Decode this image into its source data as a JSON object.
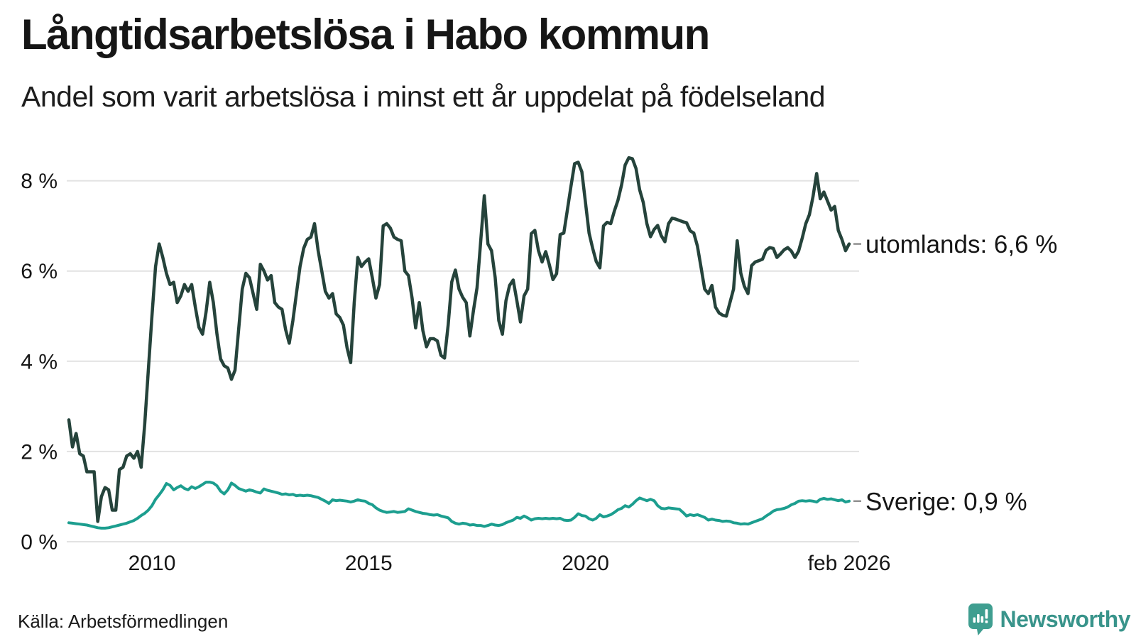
{
  "header": {
    "title": "Långtidsarbetslösa i Habo kommun",
    "subtitle": "Andel som varit arbetslösa i minst ett år uppdelat på födelseland"
  },
  "footer": {
    "source": "Källa: Arbetsförmedlingen",
    "brand": "Newsworthy",
    "brand_color": "#39948b",
    "icon": "speech-bubble-bar-chart"
  },
  "colors": {
    "background": "#ffffff",
    "grid": "#e2e2e2",
    "text": "#161616",
    "end_dash": "#8f8f8f",
    "brand_icon": "#3f9e90"
  },
  "chart_data": {
    "type": "line",
    "title": "Långtidsarbetslösa i Habo kommun",
    "subtitle": "Andel som varit arbetslösa i minst ett år uppdelat på födelseland",
    "x_unit": "month",
    "x_range": [
      "feb 2008",
      "feb 2026"
    ],
    "ylim": [
      0,
      8.6
    ],
    "grid": true,
    "legend_position": "right-end-labels",
    "x_ticks": [
      {
        "label": "2010",
        "index": 23
      },
      {
        "label": "2015",
        "index": 83
      },
      {
        "label": "2020",
        "index": 143
      },
      {
        "label": "feb 2026",
        "index": 216
      }
    ],
    "y_ticks": [
      {
        "label": "0 %",
        "value": 0
      },
      {
        "label": "2 %",
        "value": 2
      },
      {
        "label": "4 %",
        "value": 4
      },
      {
        "label": "6 %",
        "value": 6
      },
      {
        "label": "8 %",
        "value": 8
      }
    ],
    "series": [
      {
        "name": "utomlands",
        "label": "utomlands: 6,6 %",
        "end_value": "6,6 %",
        "color": "#25433b",
        "values": [
          2.7,
          2.1,
          2.4,
          1.95,
          1.9,
          1.55,
          1.55,
          1.55,
          0.45,
          1.0,
          1.2,
          1.15,
          0.7,
          0.7,
          1.6,
          1.65,
          1.9,
          1.95,
          1.85,
          2.0,
          1.65,
          2.6,
          3.8,
          5.0,
          6.1,
          6.6,
          6.3,
          5.95,
          5.7,
          5.75,
          5.3,
          5.45,
          5.7,
          5.55,
          5.7,
          5.2,
          4.75,
          4.6,
          5.1,
          5.75,
          5.3,
          4.6,
          4.05,
          3.9,
          3.85,
          3.6,
          3.8,
          4.7,
          5.6,
          5.95,
          5.85,
          5.5,
          5.15,
          6.15,
          6.0,
          5.8,
          5.9,
          5.3,
          5.2,
          5.15,
          4.7,
          4.4,
          4.9,
          5.5,
          6.1,
          6.5,
          6.7,
          6.75,
          7.05,
          6.45,
          6.0,
          5.55,
          5.4,
          5.5,
          5.05,
          4.97,
          4.8,
          4.3,
          3.97,
          5.3,
          6.3,
          6.1,
          6.2,
          6.27,
          5.85,
          5.4,
          5.7,
          7.0,
          7.05,
          6.95,
          6.75,
          6.7,
          6.67,
          6.0,
          5.9,
          5.4,
          4.74,
          5.3,
          4.68,
          4.32,
          4.5,
          4.5,
          4.45,
          4.13,
          4.07,
          4.8,
          5.76,
          6.02,
          5.6,
          5.42,
          5.3,
          4.56,
          5.13,
          5.63,
          6.65,
          7.67,
          6.6,
          6.45,
          5.86,
          4.9,
          4.6,
          5.34,
          5.68,
          5.8,
          5.35,
          4.87,
          5.45,
          5.6,
          6.83,
          6.9,
          6.45,
          6.2,
          6.43,
          6.14,
          5.81,
          5.94,
          6.81,
          6.84,
          7.35,
          7.88,
          8.38,
          8.41,
          8.2,
          7.52,
          6.84,
          6.5,
          6.21,
          6.07,
          7.0,
          7.08,
          7.05,
          7.33,
          7.57,
          7.91,
          8.35,
          8.51,
          8.49,
          8.27,
          7.8,
          7.52,
          7.05,
          6.76,
          6.92,
          7.01,
          6.78,
          6.65,
          7.05,
          7.17,
          7.15,
          7.12,
          7.09,
          7.07,
          6.89,
          6.84,
          6.55,
          6.08,
          5.6,
          5.5,
          5.68,
          5.2,
          5.07,
          5.02,
          5.0,
          5.3,
          5.6,
          6.67,
          5.95,
          5.66,
          5.5,
          6.12,
          6.2,
          6.23,
          6.26,
          6.46,
          6.52,
          6.5,
          6.3,
          6.38,
          6.47,
          6.52,
          6.44,
          6.3,
          6.44,
          6.73,
          7.05,
          7.25,
          7.65,
          8.16,
          7.6,
          7.75,
          7.55,
          7.35,
          7.43,
          6.9,
          6.7,
          6.45,
          6.6
        ]
      },
      {
        "name": "Sverige",
        "label": "Sverige: 0,9 %",
        "end_value": "0,9 %",
        "color": "#1c9e8f",
        "values": [
          0.42,
          0.41,
          0.4,
          0.39,
          0.38,
          0.37,
          0.35,
          0.33,
          0.31,
          0.3,
          0.3,
          0.31,
          0.33,
          0.35,
          0.37,
          0.39,
          0.41,
          0.44,
          0.47,
          0.52,
          0.58,
          0.63,
          0.7,
          0.8,
          0.94,
          1.04,
          1.15,
          1.29,
          1.25,
          1.15,
          1.2,
          1.24,
          1.18,
          1.15,
          1.22,
          1.18,
          1.22,
          1.27,
          1.32,
          1.32,
          1.3,
          1.24,
          1.12,
          1.06,
          1.15,
          1.3,
          1.25,
          1.18,
          1.15,
          1.12,
          1.15,
          1.13,
          1.1,
          1.08,
          1.17,
          1.14,
          1.12,
          1.1,
          1.08,
          1.05,
          1.06,
          1.04,
          1.05,
          1.02,
          1.03,
          1.02,
          1.03,
          1.02,
          1.0,
          0.98,
          0.94,
          0.9,
          0.85,
          0.93,
          0.91,
          0.92,
          0.91,
          0.9,
          0.88,
          0.9,
          0.93,
          0.91,
          0.9,
          0.85,
          0.82,
          0.75,
          0.7,
          0.67,
          0.65,
          0.66,
          0.67,
          0.65,
          0.66,
          0.67,
          0.73,
          0.7,
          0.67,
          0.65,
          0.63,
          0.62,
          0.6,
          0.59,
          0.6,
          0.57,
          0.55,
          0.53,
          0.45,
          0.41,
          0.39,
          0.41,
          0.4,
          0.37,
          0.38,
          0.36,
          0.36,
          0.34,
          0.36,
          0.39,
          0.37,
          0.36,
          0.38,
          0.42,
          0.45,
          0.48,
          0.54,
          0.52,
          0.57,
          0.53,
          0.48,
          0.51,
          0.52,
          0.51,
          0.52,
          0.51,
          0.52,
          0.51,
          0.52,
          0.48,
          0.47,
          0.48,
          0.54,
          0.62,
          0.58,
          0.57,
          0.51,
          0.48,
          0.52,
          0.6,
          0.55,
          0.57,
          0.6,
          0.65,
          0.71,
          0.74,
          0.8,
          0.77,
          0.83,
          0.91,
          0.97,
          0.94,
          0.91,
          0.94,
          0.91,
          0.8,
          0.74,
          0.73,
          0.75,
          0.74,
          0.73,
          0.72,
          0.65,
          0.57,
          0.6,
          0.58,
          0.6,
          0.57,
          0.54,
          0.48,
          0.5,
          0.48,
          0.47,
          0.45,
          0.46,
          0.45,
          0.42,
          0.41,
          0.39,
          0.4,
          0.39,
          0.42,
          0.45,
          0.48,
          0.51,
          0.57,
          0.62,
          0.68,
          0.71,
          0.72,
          0.74,
          0.77,
          0.82,
          0.85,
          0.9,
          0.91,
          0.9,
          0.91,
          0.9,
          0.88,
          0.94,
          0.96,
          0.94,
          0.95,
          0.93,
          0.91,
          0.93,
          0.88,
          0.9
        ]
      }
    ]
  }
}
